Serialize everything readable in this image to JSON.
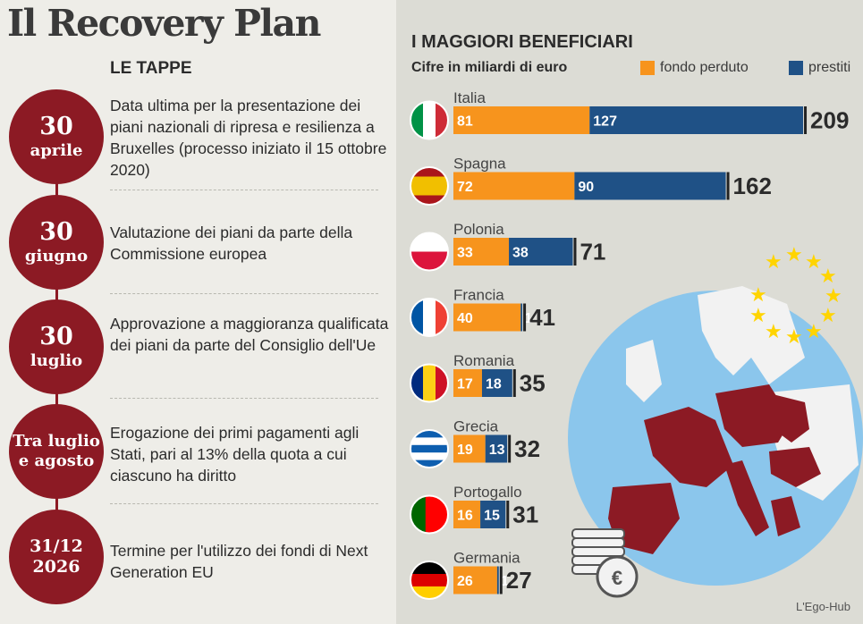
{
  "title": "Il Recovery Plan",
  "left": {
    "heading": "LE TAPPE",
    "steps": [
      {
        "date_big": "30",
        "date_small": "aprile",
        "text": "Data ultima per la presentazione dei piani nazionali di ripresa e resilienza a Bruxelles (processo iniziato il 15 ottobre 2020)"
      },
      {
        "date_big": "30",
        "date_small": "giugno",
        "text": "Valutazione dei piani da parte della Commissione europea"
      },
      {
        "date_big": "30",
        "date_small": "luglio",
        "text": "Approvazione a maggioranza qualificata dei piani da parte del Consiglio dell'Ue"
      },
      {
        "date_big": "Tra luglio",
        "date_small": "e agosto",
        "text": "Erogazione dei primi pagamenti agli Stati, pari al 13% della quota a cui ciascuno ha diritto"
      },
      {
        "date_big": "31/12",
        "date_small": "2026",
        "text": "Termine per l'utilizzo dei fondi di Next Generation EU"
      }
    ]
  },
  "chart_data": {
    "type": "bar",
    "orientation": "horizontal",
    "stacked": true,
    "title": "I MAGGIORI BENEFICIARI",
    "subtitle": "Cifre in miliardi di euro",
    "categories": [
      "Italia",
      "Spagna",
      "Polonia",
      "Francia",
      "Romania",
      "Grecia",
      "Portogallo",
      "Germania"
    ],
    "series": [
      {
        "name": "fondo perduto",
        "color": "#f7941d",
        "values": [
          81,
          72,
          33,
          40,
          17,
          19,
          16,
          26
        ]
      },
      {
        "name": "prestiti",
        "color": "#1f5186",
        "values": [
          127,
          90,
          38,
          1,
          18,
          13,
          15,
          1
        ]
      }
    ],
    "totals": [
      209,
      162,
      71,
      41,
      35,
      32,
      31,
      27
    ]
  },
  "credit": "L'Ego-Hub"
}
